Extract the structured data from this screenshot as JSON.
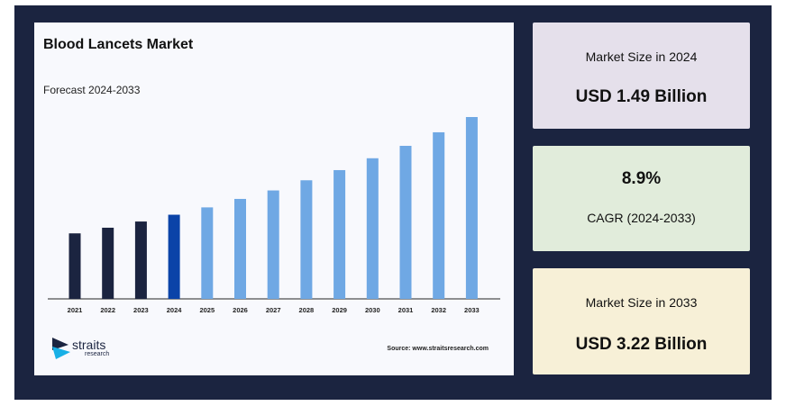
{
  "panel": {
    "title": "Blood Lancets Market",
    "subtitle": "Forecast 2024-2033",
    "source": "Source: www.straitsresearch.com",
    "logo_word": "straits",
    "logo_sub": "research"
  },
  "cards": [
    {
      "label": "Market Size in 2024",
      "value": "USD 1.49 Billion"
    },
    {
      "label": "CAGR (2024-2033)",
      "value": "8.9%"
    },
    {
      "label": "Market Size in 2033",
      "value": "USD 3.22 Billion"
    }
  ],
  "colors": {
    "frame": "#1b2440",
    "historical": "#1b2440",
    "base_year": "#0b43a8",
    "forecast": "#6fa8e4"
  },
  "chart_data": {
    "type": "bar",
    "categories": [
      "2021",
      "2022",
      "2023",
      "2024",
      "2025",
      "2026",
      "2027",
      "2028",
      "2029",
      "2030",
      "2031",
      "2032",
      "2033"
    ],
    "values": [
      1.16,
      1.26,
      1.37,
      1.49,
      1.62,
      1.77,
      1.92,
      2.1,
      2.28,
      2.49,
      2.71,
      2.95,
      3.22
    ],
    "bar_groups": [
      "historical",
      "historical",
      "historical",
      "base_year",
      "forecast",
      "forecast",
      "forecast",
      "forecast",
      "forecast",
      "forecast",
      "forecast",
      "forecast",
      "forecast"
    ],
    "title": "Blood Lancets Market",
    "subtitle": "Forecast 2024-2033",
    "ylim": [
      0,
      3.22
    ],
    "grid": false,
    "legend": "none"
  }
}
